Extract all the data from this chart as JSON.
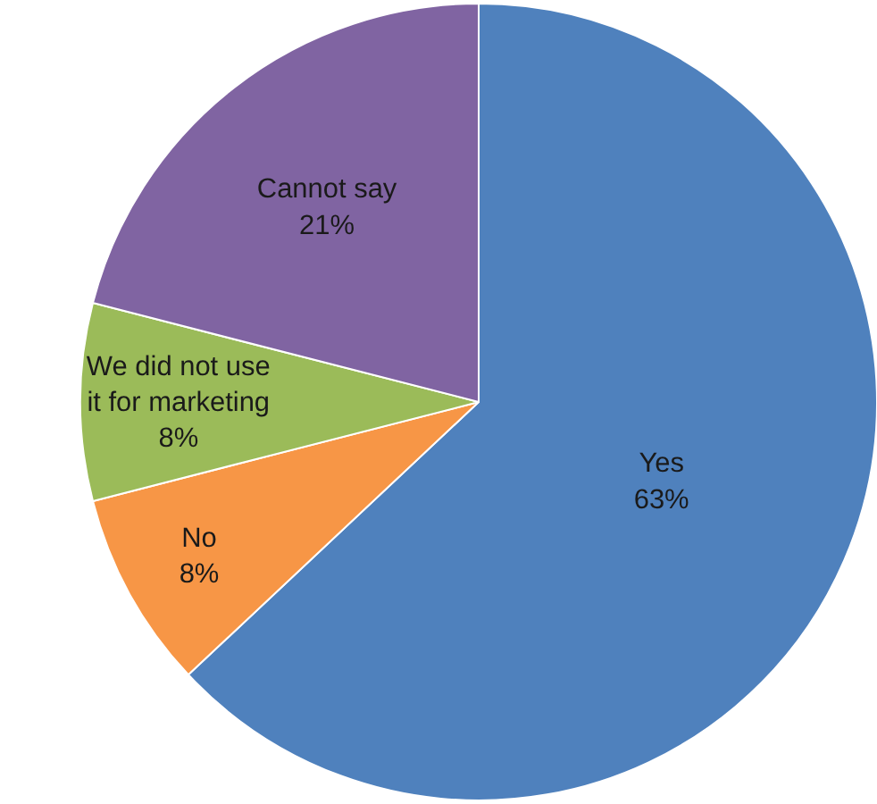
{
  "chart_data": {
    "type": "pie",
    "categories": [
      "Yes",
      "No",
      "We did not use it for marketing",
      "Cannot say"
    ],
    "values": [
      63,
      8,
      8,
      21
    ],
    "value_labels": [
      "63%",
      "8%",
      "8%",
      "21%"
    ],
    "colors": [
      "#4f81bd",
      "#f79646",
      "#9bbb59",
      "#8064a2"
    ],
    "legend": false
  }
}
